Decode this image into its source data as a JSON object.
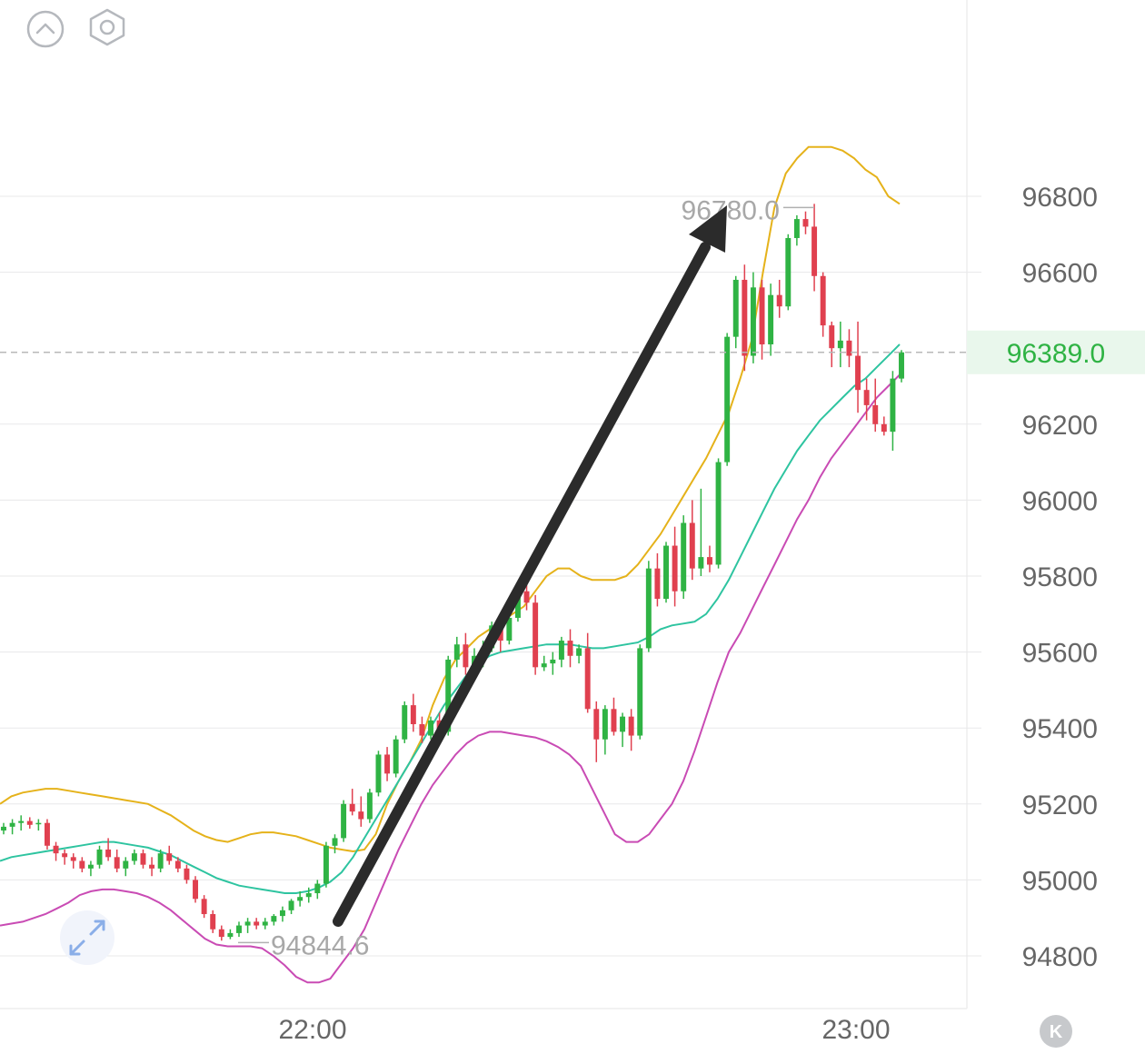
{
  "toolbar": {
    "collapse_icon": "chevron-up-circle-icon",
    "settings_icon": "hexagon-settings-icon",
    "expand_icon": "expand-arrows-icon",
    "kline_icon": "k-badge-icon"
  },
  "colors": {
    "up": "#2fb344",
    "down": "#e0404f",
    "upper_band": "#e5b21a",
    "middle_band": "#2ec4a0",
    "lower_band": "#c94bb4",
    "grid": "#e8e8ea",
    "axis_text": "#666666",
    "current_price": "#2fb344",
    "current_price_bg": "#e9f7ec",
    "arrow": "#2b2b2b"
  },
  "chart_data": {
    "type": "candlestick",
    "y_axis": {
      "ticks": [
        "96800",
        "96600",
        "96389.0",
        "96200",
        "96000",
        "95800",
        "95600",
        "95400",
        "95200",
        "95000",
        "94800"
      ],
      "range": [
        94700,
        97100
      ]
    },
    "x_axis": {
      "ticks": [
        "22:00",
        "23:00"
      ]
    },
    "current_price": "96389.0",
    "high_annotation": "96780.0",
    "low_annotation": "94844.6",
    "candles": [
      [
        95130,
        95150,
        95120,
        95140
      ],
      [
        95140,
        95160,
        95120,
        95150
      ],
      [
        95150,
        95170,
        95130,
        95155
      ],
      [
        95155,
        95165,
        95135,
        95145
      ],
      [
        95150,
        95160,
        95130,
        95150
      ],
      [
        95150,
        95160,
        95080,
        95090
      ],
      [
        95090,
        95100,
        95050,
        95070
      ],
      [
        95070,
        95080,
        95040,
        95060
      ],
      [
        95060,
        95070,
        95030,
        95050
      ],
      [
        95050,
        95060,
        95020,
        95030
      ],
      [
        95030,
        95050,
        95010,
        95040
      ],
      [
        95040,
        95090,
        95030,
        95080
      ],
      [
        95080,
        95110,
        95050,
        95060
      ],
      [
        95060,
        95080,
        95020,
        95030
      ],
      [
        95030,
        95060,
        95010,
        95050
      ],
      [
        95050,
        95080,
        95040,
        95070
      ],
      [
        95070,
        95080,
        95030,
        95040
      ],
      [
        95040,
        95060,
        95010,
        95030
      ],
      [
        95030,
        95080,
        95020,
        95070
      ],
      [
        95070,
        95090,
        95040,
        95050
      ],
      [
        95050,
        95060,
        95020,
        95030
      ],
      [
        95030,
        95040,
        94990,
        95000
      ],
      [
        95000,
        95010,
        94940,
        94950
      ],
      [
        94950,
        94960,
        94900,
        94910
      ],
      [
        94910,
        94920,
        94860,
        94870
      ],
      [
        94870,
        94880,
        94840,
        94850
      ],
      [
        94850,
        94870,
        94844,
        94860
      ],
      [
        94860,
        94890,
        94850,
        94880
      ],
      [
        94880,
        94900,
        94860,
        94890
      ],
      [
        94890,
        94900,
        94870,
        94880
      ],
      [
        94880,
        94900,
        94870,
        94890
      ],
      [
        94890,
        94910,
        94880,
        94905
      ],
      [
        94905,
        94930,
        94890,
        94920
      ],
      [
        94920,
        94950,
        94910,
        94945
      ],
      [
        94945,
        94970,
        94930,
        94955
      ],
      [
        94955,
        94980,
        94940,
        94965
      ],
      [
        94965,
        95000,
        94950,
        94990
      ],
      [
        94990,
        95100,
        94980,
        95090
      ],
      [
        95090,
        95120,
        95070,
        95110
      ],
      [
        95110,
        95210,
        95100,
        95200
      ],
      [
        95200,
        95240,
        95170,
        95180
      ],
      [
        95180,
        95220,
        95140,
        95160
      ],
      [
        95160,
        95240,
        95150,
        95230
      ],
      [
        95230,
        95340,
        95220,
        95330
      ],
      [
        95330,
        95350,
        95260,
        95280
      ],
      [
        95280,
        95380,
        95270,
        95370
      ],
      [
        95370,
        95470,
        95360,
        95460
      ],
      [
        95460,
        95490,
        95390,
        95410
      ],
      [
        95410,
        95430,
        95360,
        95380
      ],
      [
        95380,
        95430,
        95370,
        95420
      ],
      [
        95420,
        95440,
        95370,
        95390
      ],
      [
        95390,
        95590,
        95380,
        95580
      ],
      [
        95580,
        95640,
        95560,
        95620
      ],
      [
        95620,
        95650,
        95540,
        95560
      ],
      [
        95560,
        95610,
        95530,
        95590
      ],
      [
        95590,
        95630,
        95560,
        95610
      ],
      [
        95610,
        95680,
        95600,
        95670
      ],
      [
        95670,
        95690,
        95600,
        95630
      ],
      [
        95630,
        95700,
        95620,
        95690
      ],
      [
        95690,
        95770,
        95680,
        95760
      ],
      [
        95760,
        95790,
        95710,
        95730
      ],
      [
        95730,
        95750,
        95540,
        95560
      ],
      [
        95560,
        95590,
        95550,
        95570
      ],
      [
        95570,
        95600,
        95540,
        95580
      ],
      [
        95580,
        95640,
        95560,
        95630
      ],
      [
        95630,
        95660,
        95560,
        95590
      ],
      [
        95590,
        95620,
        95570,
        95610
      ],
      [
        95610,
        95650,
        95440,
        95450
      ],
      [
        95450,
        95470,
        95310,
        95370
      ],
      [
        95370,
        95460,
        95330,
        95450
      ],
      [
        95450,
        95480,
        95380,
        95390
      ],
      [
        95390,
        95440,
        95350,
        95430
      ],
      [
        95430,
        95450,
        95340,
        95380
      ],
      [
        95380,
        95620,
        95370,
        95610
      ],
      [
        95610,
        95840,
        95600,
        95820
      ],
      [
        95820,
        95860,
        95720,
        95740
      ],
      [
        95740,
        95890,
        95730,
        95880
      ],
      [
        95880,
        95930,
        95720,
        95760
      ],
      [
        95760,
        95960,
        95740,
        95940
      ],
      [
        95940,
        96000,
        95790,
        95820
      ],
      [
        95820,
        96030,
        95800,
        95850
      ],
      [
        95850,
        95880,
        95810,
        95830
      ],
      [
        95830,
        96110,
        95820,
        96100
      ],
      [
        96100,
        96440,
        96090,
        96430
      ],
      [
        96430,
        96590,
        96400,
        96580
      ],
      [
        96580,
        96620,
        96340,
        96380
      ],
      [
        96380,
        96600,
        96360,
        96560
      ],
      [
        96560,
        96580,
        96370,
        96410
      ],
      [
        96410,
        96570,
        96380,
        96540
      ],
      [
        96540,
        96580,
        96480,
        96510
      ],
      [
        96510,
        96700,
        96500,
        96690
      ],
      [
        96690,
        96750,
        96670,
        96740
      ],
      [
        96740,
        96760,
        96700,
        96720
      ],
      [
        96720,
        96780,
        96550,
        96590
      ],
      [
        96590,
        96600,
        96430,
        96460
      ],
      [
        96460,
        96470,
        96350,
        96400
      ],
      [
        96400,
        96470,
        96350,
        96420
      ],
      [
        96420,
        96450,
        96350,
        96380
      ],
      [
        96380,
        96470,
        96230,
        96290
      ],
      [
        96290,
        96320,
        96210,
        96250
      ],
      [
        96250,
        96320,
        96180,
        96200
      ],
      [
        96200,
        96220,
        96170,
        96180
      ],
      [
        96180,
        96340,
        96130,
        96320
      ],
      [
        96320,
        96395,
        96310,
        96389
      ]
    ],
    "bands": {
      "upper": [
        95200,
        95220,
        95230,
        95235,
        95240,
        95240,
        95235,
        95230,
        95225,
        95220,
        95215,
        95210,
        95205,
        95200,
        95185,
        95170,
        95150,
        95130,
        95115,
        95105,
        95100,
        95110,
        95120,
        95125,
        95125,
        95120,
        95115,
        95105,
        95095,
        95085,
        95080,
        95075,
        95080,
        95120,
        95200,
        95260,
        95310,
        95370,
        95460,
        95530,
        95580,
        95610,
        95640,
        95660,
        95680,
        95700,
        95720,
        95760,
        95800,
        95820,
        95820,
        95800,
        95790,
        95790,
        95790,
        95800,
        95830,
        95870,
        95910,
        95960,
        96010,
        96060,
        96110,
        96170,
        96230,
        96320,
        96420,
        96600,
        96770,
        96860,
        96900,
        96930,
        96930,
        96930,
        96920,
        96900,
        96870,
        96850,
        96800,
        96780
      ],
      "middle": [
        95050,
        95060,
        95065,
        95070,
        95075,
        95080,
        95085,
        95090,
        95095,
        95100,
        95100,
        95095,
        95090,
        95085,
        95075,
        95065,
        95050,
        95035,
        95020,
        95005,
        94995,
        94985,
        94980,
        94975,
        94970,
        94965,
        94965,
        94970,
        94980,
        94995,
        95020,
        95060,
        95110,
        95160,
        95210,
        95260,
        95310,
        95360,
        95410,
        95460,
        95500,
        95540,
        95570,
        95590,
        95600,
        95605,
        95610,
        95615,
        95620,
        95620,
        95620,
        95615,
        95610,
        95610,
        95615,
        95620,
        95625,
        95640,
        95660,
        95670,
        95675,
        95680,
        95700,
        95740,
        95790,
        95850,
        95910,
        95970,
        96030,
        96080,
        96130,
        96170,
        96210,
        96240,
        96270,
        96300,
        96320,
        96350,
        96380,
        96410
      ],
      "lower": [
        94880,
        94885,
        94890,
        94900,
        94910,
        94925,
        94940,
        94960,
        94970,
        94975,
        94975,
        94970,
        94965,
        94955,
        94940,
        94920,
        94895,
        94870,
        94845,
        94830,
        94825,
        94825,
        94825,
        94820,
        94800,
        94775,
        94745,
        94730,
        94730,
        94740,
        94780,
        94820,
        94870,
        94940,
        95010,
        95080,
        95140,
        95200,
        95250,
        95290,
        95330,
        95360,
        95380,
        95390,
        95390,
        95385,
        95380,
        95375,
        95365,
        95350,
        95330,
        95300,
        95240,
        95180,
        95120,
        95100,
        95100,
        95120,
        95160,
        95200,
        95260,
        95340,
        95430,
        95520,
        95600,
        95650,
        95710,
        95770,
        95830,
        95890,
        95950,
        96000,
        96060,
        96110,
        96150,
        96190,
        96230,
        96270,
        96300,
        96330
      ]
    }
  }
}
